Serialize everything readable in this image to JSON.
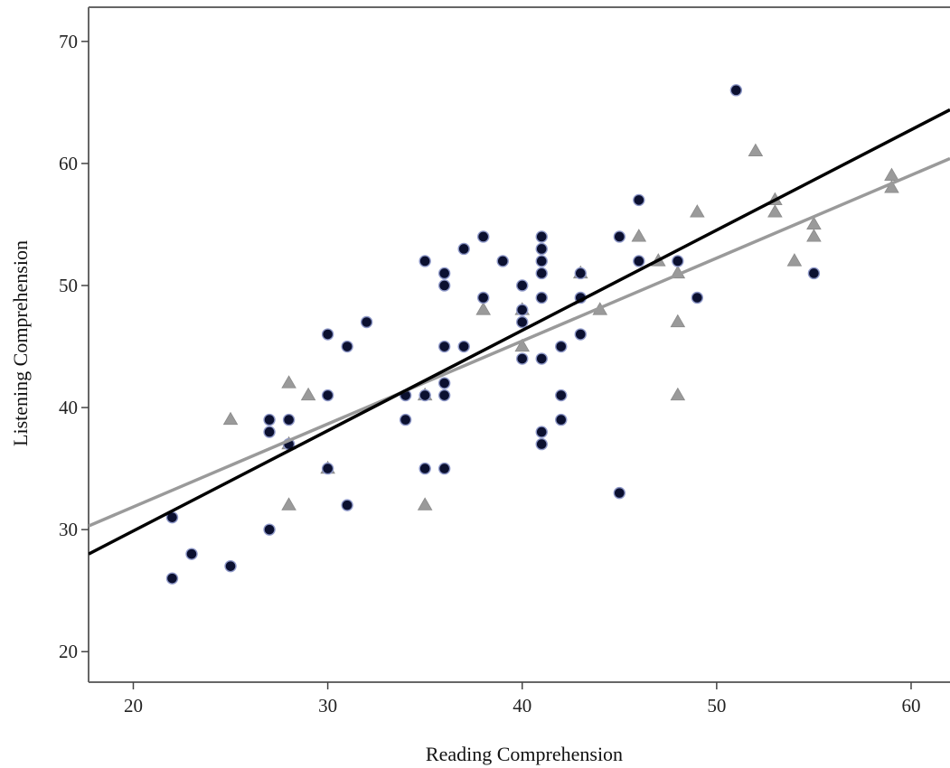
{
  "chart_data": {
    "type": "scatter",
    "title": "",
    "xlabel": "Reading Comprehension",
    "ylabel": "Listening Comprehension",
    "xlim": [
      17.7,
      62
    ],
    "ylim": [
      17.5,
      72.8
    ],
    "xticks": [
      20,
      30,
      40,
      50,
      60
    ],
    "yticks": [
      20,
      30,
      40,
      50,
      60,
      70
    ],
    "grid": false,
    "legend": "none",
    "colors": {
      "series_dark": "#0b1030",
      "series_gray": "#9a9a9a",
      "fit_dark": "#000000",
      "fit_gray": "#9a9a9a",
      "frame": "#666666"
    },
    "series": [
      {
        "marker": "circle",
        "color": "#0b1030",
        "points": [
          [
            22,
            31
          ],
          [
            22,
            26
          ],
          [
            23,
            28
          ],
          [
            25,
            27
          ],
          [
            27,
            39
          ],
          [
            27,
            38
          ],
          [
            27,
            30
          ],
          [
            28,
            39
          ],
          [
            28,
            37
          ],
          [
            30,
            46
          ],
          [
            30,
            41
          ],
          [
            30,
            35
          ],
          [
            31,
            45
          ],
          [
            31,
            32
          ],
          [
            32,
            47
          ],
          [
            34,
            41
          ],
          [
            34,
            39
          ],
          [
            35,
            52
          ],
          [
            35,
            41
          ],
          [
            35,
            35
          ],
          [
            36,
            51
          ],
          [
            36,
            50
          ],
          [
            36,
            45
          ],
          [
            36,
            42
          ],
          [
            36,
            41
          ],
          [
            36,
            35
          ],
          [
            37,
            53
          ],
          [
            37,
            45
          ],
          [
            38,
            54
          ],
          [
            38,
            49
          ],
          [
            39,
            52
          ],
          [
            40,
            50
          ],
          [
            40,
            48
          ],
          [
            40,
            47
          ],
          [
            40,
            44
          ],
          [
            41,
            54
          ],
          [
            41,
            53
          ],
          [
            41,
            52
          ],
          [
            41,
            51
          ],
          [
            41,
            49
          ],
          [
            41,
            44
          ],
          [
            41,
            38
          ],
          [
            41,
            37
          ],
          [
            42,
            45
          ],
          [
            42,
            41
          ],
          [
            42,
            39
          ],
          [
            43,
            51
          ],
          [
            43,
            49
          ],
          [
            43,
            46
          ],
          [
            45,
            54
          ],
          [
            45,
            33
          ],
          [
            46,
            57
          ],
          [
            46,
            52
          ],
          [
            48,
            52
          ],
          [
            49,
            49
          ],
          [
            51,
            66
          ],
          [
            55,
            51
          ]
        ],
        "fit": {
          "x": [
            17.7,
            62
          ],
          "y": [
            28.0,
            64.4
          ]
        }
      },
      {
        "marker": "triangle",
        "color": "#9a9a9a",
        "points": [
          [
            25,
            39
          ],
          [
            28,
            42
          ],
          [
            28,
            37
          ],
          [
            28,
            32
          ],
          [
            29,
            41
          ],
          [
            30,
            35
          ],
          [
            35,
            41
          ],
          [
            35,
            32
          ],
          [
            38,
            48
          ],
          [
            40,
            48
          ],
          [
            40,
            45
          ],
          [
            43,
            51
          ],
          [
            44,
            48
          ],
          [
            46,
            54
          ],
          [
            47,
            52
          ],
          [
            48,
            51
          ],
          [
            48,
            47
          ],
          [
            48,
            41
          ],
          [
            49,
            56
          ],
          [
            52,
            61
          ],
          [
            53,
            57
          ],
          [
            53,
            56
          ],
          [
            54,
            52
          ],
          [
            55,
            55
          ],
          [
            55,
            54
          ],
          [
            59,
            59
          ],
          [
            59,
            58
          ]
        ],
        "fit": {
          "x": [
            17.7,
            62
          ],
          "y": [
            30.3,
            60.4
          ]
        }
      }
    ]
  }
}
